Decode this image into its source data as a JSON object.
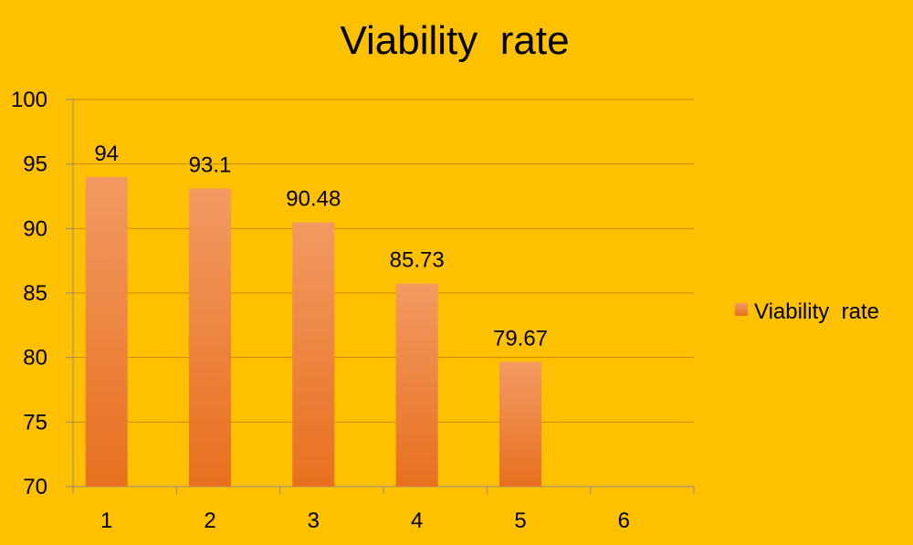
{
  "chart_data": {
    "type": "bar",
    "title": "Viability  rate",
    "xlabel": "",
    "ylabel": "",
    "categories": [
      "1",
      "2",
      "3",
      "4",
      "5",
      "6"
    ],
    "series": [
      {
        "name": "Viability  rate",
        "values": [
          94,
          93.1,
          90.48,
          85.73,
          79.67,
          null
        ],
        "data_labels": [
          "94",
          "93.1",
          "90.48",
          "85.73",
          "79.67",
          ""
        ]
      }
    ],
    "ylim": [
      70,
      100
    ],
    "yticks": [
      "70",
      "75",
      "80",
      "85",
      "90",
      "95",
      "100"
    ],
    "grid": true,
    "legend_position": "right",
    "colors": {
      "background": "#FFC000",
      "bar_top": "#F29A62",
      "bar_bottom": "#E8701F",
      "grid": "#C88A00",
      "axis": "#8C8C8C"
    }
  }
}
